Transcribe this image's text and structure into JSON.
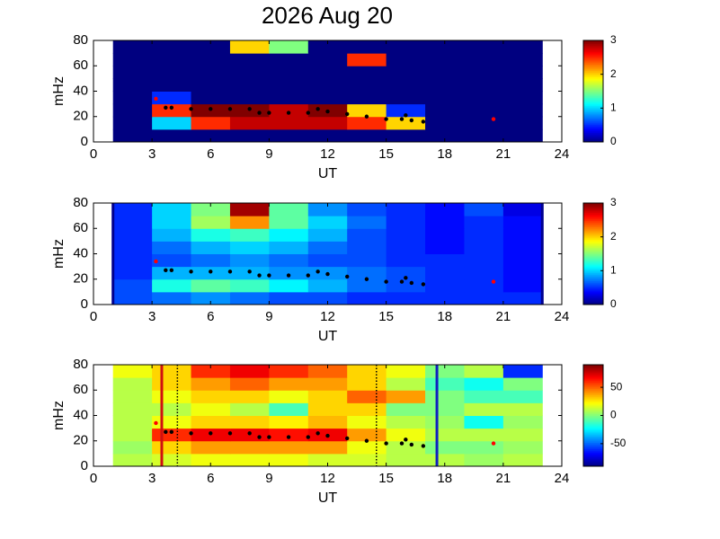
{
  "chart_data": [
    {
      "type": "heatmap",
      "title": "2026 Aug 20",
      "x_label": "UT",
      "y_label": "mHz",
      "xlim": [
        0,
        24
      ],
      "ylim": [
        0,
        80
      ],
      "xticks": [
        0,
        3,
        6,
        9,
        12,
        15,
        18,
        21,
        24
      ],
      "yticks": [
        0,
        20,
        40,
        60,
        80
      ],
      "clim": [
        0,
        3
      ],
      "cticks": [
        0,
        1,
        2,
        3
      ],
      "x_edges": [
        1,
        3,
        5,
        7,
        9,
        11,
        13,
        15,
        17,
        19,
        21,
        23
      ],
      "y_edges": [
        0,
        10,
        20,
        30,
        40,
        50,
        60,
        70,
        80
      ],
      "z": [
        [
          0,
          0,
          0,
          0,
          0,
          0,
          0,
          0,
          0,
          0,
          0
        ],
        [
          0,
          1,
          2.5,
          2.8,
          2.8,
          2.8,
          2.5,
          2,
          0,
          0,
          0
        ],
        [
          0,
          2.5,
          3,
          3,
          2.8,
          3,
          2,
          0.5,
          0,
          0,
          0
        ],
        [
          0,
          0.5,
          0,
          0,
          0,
          0,
          0,
          0,
          0,
          0,
          0
        ],
        [
          0,
          0,
          0,
          0,
          0,
          0,
          0,
          0,
          0,
          0,
          0
        ],
        [
          0,
          0,
          0,
          0,
          0,
          0,
          0,
          0,
          0,
          0,
          0
        ],
        [
          0,
          0,
          0,
          0,
          0,
          0,
          2.5,
          0,
          0,
          0,
          0
        ],
        [
          0,
          0,
          0,
          2,
          1.5,
          0,
          0,
          0,
          0,
          0,
          0
        ]
      ],
      "series": [
        {
          "color": "#000000",
          "x": [
            3.7,
            4,
            5,
            6,
            7,
            8,
            8.5,
            9,
            10,
            11,
            11.5,
            12,
            13,
            14,
            15,
            15.8,
            16,
            16.3,
            16.9
          ],
          "y": [
            27,
            27,
            26,
            26,
            26,
            26,
            23,
            23,
            23,
            23,
            26,
            24,
            22,
            20,
            18,
            18,
            21,
            17,
            16
          ]
        },
        {
          "color": "#ff0000",
          "x": [
            3.2,
            20.5
          ],
          "y": [
            34,
            18
          ]
        }
      ],
      "vlines": []
    },
    {
      "type": "heatmap",
      "x_label": "UT",
      "y_label": "mHz",
      "xlim": [
        0,
        24
      ],
      "ylim": [
        0,
        80
      ],
      "xticks": [
        0,
        3,
        6,
        9,
        12,
        15,
        18,
        21,
        24
      ],
      "yticks": [
        0,
        20,
        40,
        60,
        80
      ],
      "clim": [
        0,
        3
      ],
      "cticks": [
        0,
        1,
        2,
        3
      ],
      "x_edges": [
        1,
        3,
        5,
        7,
        9,
        11,
        13,
        15,
        17,
        19,
        21,
        23
      ],
      "y_edges": [
        0,
        10,
        20,
        30,
        40,
        50,
        60,
        70,
        80
      ],
      "z": [
        [
          0.6,
          0.7,
          0.8,
          0.7,
          0.6,
          0.6,
          0.5,
          0.5,
          0.5,
          0.5,
          0.5
        ],
        [
          0.6,
          1.2,
          1.4,
          1.3,
          1.1,
          0.9,
          0.7,
          0.6,
          0.5,
          0.5,
          0.4
        ],
        [
          0.5,
          0.9,
          0.9,
          0.9,
          0.8,
          0.8,
          0.7,
          0.6,
          0.5,
          0.5,
          0.4
        ],
        [
          0.5,
          0.6,
          0.7,
          0.8,
          0.7,
          0.6,
          0.6,
          0.5,
          0.5,
          0.5,
          0.4
        ],
        [
          0.5,
          0.7,
          0.9,
          1,
          0.9,
          0.7,
          0.6,
          0.5,
          0.4,
          0.5,
          0.4
        ],
        [
          0.5,
          0.9,
          1.2,
          1.3,
          1.1,
          0.9,
          0.6,
          0.5,
          0.4,
          0.5,
          0.4
        ],
        [
          0.5,
          1,
          1.6,
          2.2,
          1.4,
          1,
          0.7,
          0.5,
          0.4,
          0.5,
          0.4
        ],
        [
          0.5,
          1,
          1.5,
          2.9,
          1.4,
          0.8,
          0.6,
          0.5,
          0.4,
          0.6,
          0.3
        ]
      ],
      "series": [
        {
          "color": "#000000",
          "x": [
            3.7,
            4,
            5,
            6,
            7,
            8,
            8.5,
            9,
            10,
            11,
            11.5,
            12,
            13,
            14,
            15,
            15.8,
            16,
            16.3,
            16.9
          ],
          "y": [
            27,
            27,
            26,
            26,
            26,
            26,
            23,
            23,
            23,
            23,
            26,
            24,
            22,
            20,
            18,
            18,
            21,
            17,
            16
          ]
        },
        {
          "color": "#ff0000",
          "x": [
            3.2,
            20.5
          ],
          "y": [
            34,
            18
          ]
        }
      ],
      "vlines": [
        {
          "x": 1,
          "color": "#00008f",
          "style": "solid"
        },
        {
          "x": 23,
          "color": "#00008f",
          "style": "solid"
        }
      ]
    },
    {
      "type": "heatmap",
      "x_label": "UT",
      "y_label": "mHz",
      "xlim": [
        0,
        24
      ],
      "ylim": [
        0,
        80
      ],
      "xticks": [
        0,
        3,
        6,
        9,
        12,
        15,
        18,
        21,
        24
      ],
      "yticks": [
        0,
        20,
        40,
        60,
        80
      ],
      "clim": [
        -90,
        90
      ],
      "cticks": [
        -50,
        0,
        50
      ],
      "x_edges": [
        1,
        3,
        5,
        7,
        9,
        11,
        13,
        15,
        17,
        19,
        21,
        23
      ],
      "y_edges": [
        0,
        10,
        20,
        30,
        40,
        50,
        60,
        70,
        80
      ],
      "z": [
        [
          10,
          15,
          20,
          20,
          20,
          15,
          15,
          10,
          10,
          5,
          10
        ],
        [
          5,
          30,
          40,
          40,
          40,
          40,
          20,
          10,
          0,
          0,
          5
        ],
        [
          10,
          60,
          70,
          70,
          65,
          70,
          40,
          20,
          10,
          10,
          10
        ],
        [
          10,
          20,
          30,
          30,
          25,
          35,
          20,
          10,
          5,
          -20,
          5
        ],
        [
          10,
          10,
          20,
          10,
          -10,
          30,
          30,
          0,
          0,
          10,
          10
        ],
        [
          10,
          20,
          30,
          30,
          20,
          30,
          50,
          40,
          0,
          -10,
          -10
        ],
        [
          10,
          30,
          40,
          50,
          40,
          40,
          30,
          10,
          -10,
          -20,
          0
        ],
        [
          20,
          30,
          60,
          70,
          60,
          50,
          30,
          20,
          0,
          10,
          -60
        ]
      ],
      "series": [
        {
          "color": "#000000",
          "x": [
            3.7,
            4,
            5,
            6,
            7,
            8,
            8.5,
            9,
            10,
            11,
            11.5,
            12,
            13,
            14,
            15,
            15.8,
            16,
            16.3,
            16.9
          ],
          "y": [
            27,
            27,
            26,
            26,
            26,
            26,
            23,
            23,
            23,
            23,
            26,
            24,
            22,
            20,
            18,
            18,
            21,
            17,
            16
          ]
        },
        {
          "color": "#ff0000",
          "x": [
            3.2,
            20.5
          ],
          "y": [
            34,
            18
          ]
        }
      ],
      "vlines": [
        {
          "x": 3.5,
          "color": "#d01010",
          "style": "solid"
        },
        {
          "x": 4.3,
          "color": "#000000",
          "style": "dotted"
        },
        {
          "x": 14.5,
          "color": "#000000",
          "style": "dotted"
        },
        {
          "x": 17.6,
          "color": "#1020c0",
          "style": "solid"
        }
      ]
    }
  ]
}
